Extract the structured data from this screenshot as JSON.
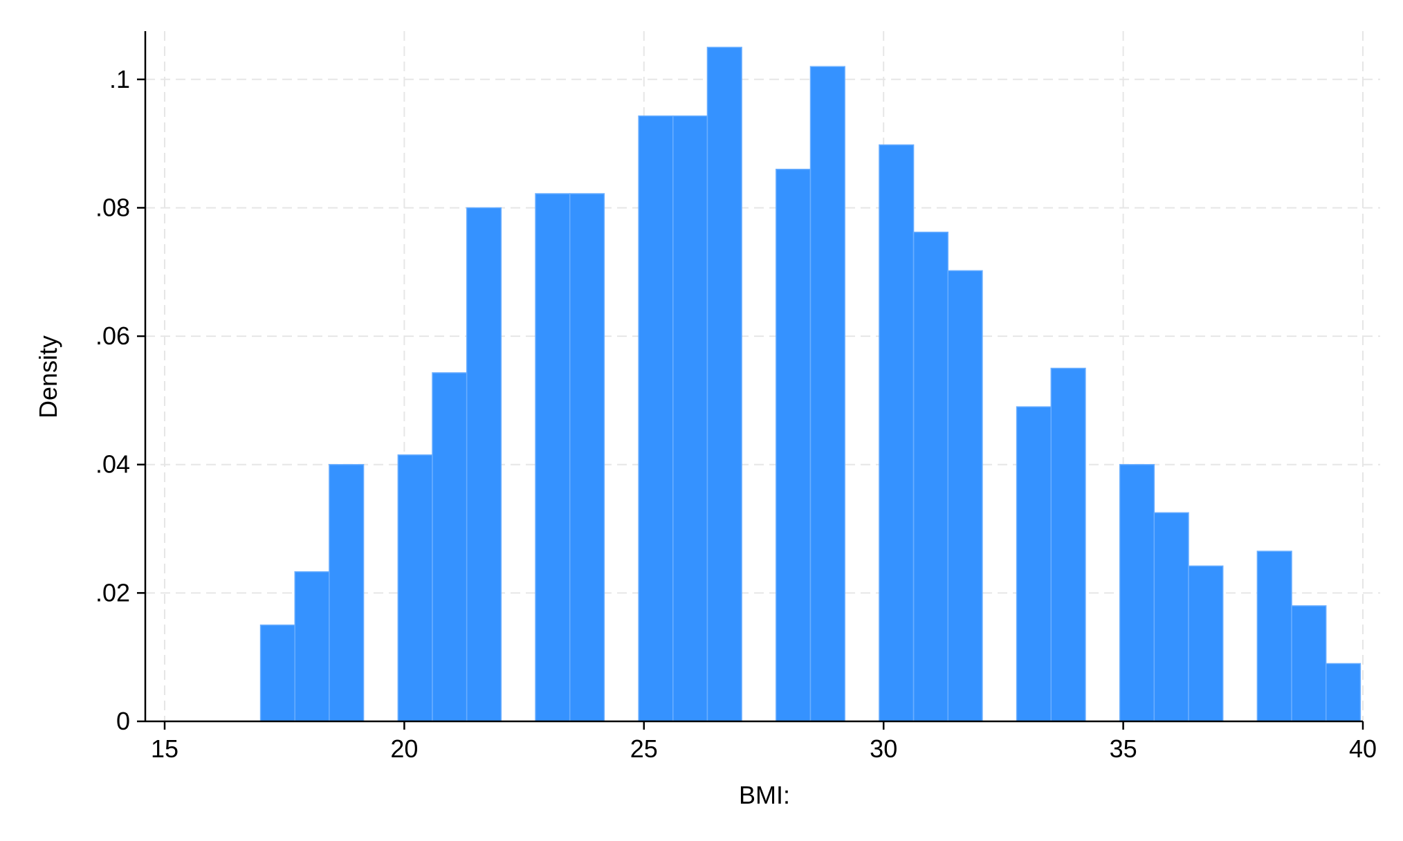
{
  "chart_data": {
    "type": "bar",
    "title": "",
    "xlabel": "BMI:",
    "ylabel": "Density",
    "xlim": [
      15,
      40
    ],
    "ylim": [
      0,
      0.108
    ],
    "xticks": [
      {
        "value": 15,
        "label": "15"
      },
      {
        "value": 20,
        "label": "20"
      },
      {
        "value": 25,
        "label": "25"
      },
      {
        "value": 30,
        "label": "30"
      },
      {
        "value": 35,
        "label": "35"
      },
      {
        "value": 40,
        "label": "40"
      }
    ],
    "yticks": [
      {
        "value": 0,
        "label": "0"
      },
      {
        "value": 0.02,
        "label": ".02"
      },
      {
        "value": 0.04,
        "label": ".04"
      },
      {
        "value": 0.06,
        "label": ".06"
      },
      {
        "value": 0.08,
        "label": ".08"
      },
      {
        "value": 0.1,
        "label": ".1"
      }
    ],
    "bin_width": 0.717,
    "bins": [
      {
        "x0": 17.0,
        "density": 0.015
      },
      {
        "x0": 17.717,
        "density": 0.0233
      },
      {
        "x0": 18.434,
        "density": 0.04
      },
      {
        "x0": 19.869,
        "density": 0.0415
      },
      {
        "x0": 20.586,
        "density": 0.0543
      },
      {
        "x0": 21.303,
        "density": 0.08
      },
      {
        "x0": 22.737,
        "density": 0.0822
      },
      {
        "x0": 23.454,
        "density": 0.0822
      },
      {
        "x0": 24.889,
        "density": 0.0943
      },
      {
        "x0": 25.606,
        "density": 0.0943
      },
      {
        "x0": 26.323,
        "density": 0.105
      },
      {
        "x0": 27.757,
        "density": 0.086
      },
      {
        "x0": 28.474,
        "density": 0.102
      },
      {
        "x0": 29.909,
        "density": 0.0898
      },
      {
        "x0": 30.626,
        "density": 0.0762
      },
      {
        "x0": 31.343,
        "density": 0.0702
      },
      {
        "x0": 32.777,
        "density": 0.049
      },
      {
        "x0": 33.494,
        "density": 0.055
      },
      {
        "x0": 34.929,
        "density": 0.04
      },
      {
        "x0": 35.646,
        "density": 0.0325
      },
      {
        "x0": 36.363,
        "density": 0.0242
      },
      {
        "x0": 37.797,
        "density": 0.0265
      },
      {
        "x0": 38.514,
        "density": 0.018
      },
      {
        "x0": 39.231,
        "density": 0.009
      }
    ],
    "grid": true,
    "legend": "none",
    "bar_color": "#3592ff"
  }
}
